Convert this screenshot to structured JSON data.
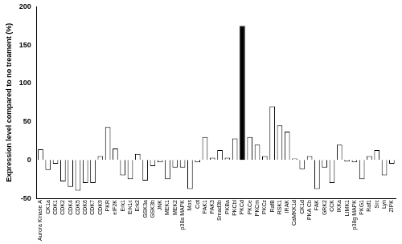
{
  "chart_data": {
    "type": "bar",
    "y_label": "Expression level compared to no treament (%)",
    "categories": [
      "Aurora Kinase A",
      "CK1a",
      "CDK1",
      "CDK2",
      "CDK4",
      "CDK5",
      "CDK6",
      "CDK7",
      "CDK9",
      "PKR",
      "eIF2K",
      "Erk1",
      "Erk1c",
      "Erk2",
      "GSK3a",
      "GSK3b",
      "JNK",
      "MEK1",
      "MEK2",
      "p38a MAPK",
      "Mos",
      "Cot",
      "PAK1",
      "PAK3",
      "Smad3b",
      "PKBa",
      "PKCbl",
      "PKCd",
      "PKCe",
      "PKCm",
      "PKCz",
      "RafB",
      "RSK1",
      "IRAK",
      "CaMKK1d",
      "CK1d",
      "PKA Cb",
      "FAK",
      "GRK2",
      "CCK",
      "IKKa",
      "LIMK1",
      "p38g MAPK",
      "PKG1",
      "Raf1",
      "Src",
      "Lyn",
      "ZIPK"
    ],
    "values": [
      14,
      -13,
      -5,
      -28,
      -35,
      -40,
      -30,
      -30,
      5,
      43,
      15,
      -20,
      -25,
      8,
      -27,
      -8,
      -3,
      -25,
      -10,
      -10,
      -38,
      -3,
      30,
      3,
      13,
      3,
      28,
      175,
      30,
      20,
      5,
      70,
      45,
      37,
      2,
      -12,
      5,
      -38,
      -10,
      -30,
      20,
      -2,
      -3,
      -25,
      5,
      13,
      -20,
      -5
    ],
    "colors": [
      "#ffffff",
      "#ffffff",
      "#ffffff",
      "#ffffff",
      "#ffffff",
      "#ffffff",
      "#ffffff",
      "#ffffff",
      "#ffffff",
      "#ffffff",
      "#ffffff",
      "#ffffff",
      "#ffffff",
      "#ffffff",
      "#ffffff",
      "#ffffff",
      "#ffffff",
      "#ffffff",
      "#ffffff",
      "#ffffff",
      "#ffffff",
      "#ffffff",
      "#ffffff",
      "#ffffff",
      "#ffffff",
      "#ffffff",
      "#ffffff",
      "#000000",
      "#ffffff",
      "#ffffff",
      "#ffffff",
      "#ffffff",
      "#ffffff",
      "#ffffff",
      "#ffffff",
      "#ffffff",
      "#ffffff",
      "#ffffff",
      "#ffffff",
      "#ffffff",
      "#ffffff",
      "#ffffff",
      "#ffffff",
      "#ffffff",
      "#ffffff",
      "#ffffff",
      "#ffffff",
      "#ffffff"
    ],
    "ylim": [
      -50,
      200
    ],
    "yticks": [
      -50,
      0,
      50,
      100,
      150,
      200
    ],
    "grid": false
  }
}
